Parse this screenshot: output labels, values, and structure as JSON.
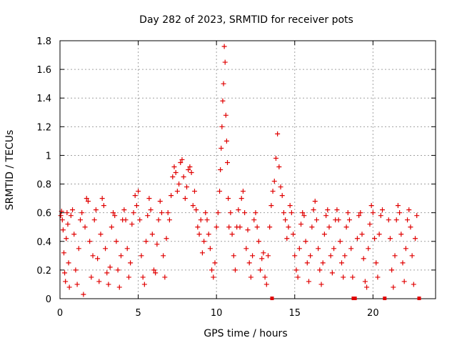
{
  "chart_data": {
    "type": "scatter",
    "title": "Day 282 of 2023, SRMTID for receiver pots",
    "xlabel": "GPS time / hours",
    "ylabel": "SRMTID / TECUs",
    "xlim": [
      0,
      24
    ],
    "ylim": [
      0,
      1.8
    ],
    "xticks": [
      0,
      5,
      10,
      15,
      20
    ],
    "xtick_labels": [
      "0",
      "5",
      "10",
      "15",
      "20"
    ],
    "yticks": [
      0,
      0.2,
      0.4,
      0.6,
      0.8,
      1,
      1.2,
      1.4,
      1.6,
      1.8
    ],
    "ytick_labels": [
      "0",
      "0.2",
      "0.4",
      "0.6",
      "0.8",
      "1",
      "1.2",
      "1.4",
      "1.6",
      "1.8"
    ],
    "grid": true,
    "marker": "+",
    "color": "#e00000",
    "series": [
      {
        "name": "SRMTID",
        "points": [
          [
            0.05,
            0.58
          ],
          [
            0.1,
            0.61
          ],
          [
            0.15,
            0.55
          ],
          [
            0.2,
            0.48
          ],
          [
            0.25,
            0.32
          ],
          [
            0.3,
            0.18
          ],
          [
            0.35,
            0.12
          ],
          [
            0.4,
            0.42
          ],
          [
            0.45,
            0.6
          ],
          [
            0.5,
            0.52
          ],
          [
            0.55,
            0.25
          ],
          [
            0.6,
            0.08
          ],
          [
            0.7,
            0.58
          ],
          [
            0.8,
            0.62
          ],
          [
            0.9,
            0.45
          ],
          [
            1.0,
            0.2
          ],
          [
            1.1,
            0.1
          ],
          [
            1.2,
            0.35
          ],
          [
            1.3,
            0.55
          ],
          [
            1.4,
            0.6
          ],
          [
            1.5,
            0.03
          ],
          [
            1.6,
            0.5
          ],
          [
            1.7,
            0.7
          ],
          [
            1.8,
            0.68
          ],
          [
            1.9,
            0.4
          ],
          [
            2.0,
            0.15
          ],
          [
            2.1,
            0.3
          ],
          [
            2.2,
            0.55
          ],
          [
            2.3,
            0.62
          ],
          [
            2.4,
            0.28
          ],
          [
            2.5,
            0.12
          ],
          [
            2.6,
            0.45
          ],
          [
            2.7,
            0.7
          ],
          [
            2.8,
            0.65
          ],
          [
            2.9,
            0.35
          ],
          [
            3.0,
            0.18
          ],
          [
            3.1,
            0.1
          ],
          [
            3.2,
            0.22
          ],
          [
            3.3,
            0.5
          ],
          [
            3.4,
            0.6
          ],
          [
            3.5,
            0.58
          ],
          [
            3.6,
            0.4
          ],
          [
            3.7,
            0.2
          ],
          [
            3.8,
            0.08
          ],
          [
            3.9,
            0.3
          ],
          [
            4.0,
            0.55
          ],
          [
            4.1,
            0.62
          ],
          [
            4.2,
            0.55
          ],
          [
            4.3,
            0.35
          ],
          [
            4.4,
            0.15
          ],
          [
            4.5,
            0.25
          ],
          [
            4.6,
            0.52
          ],
          [
            4.7,
            0.6
          ],
          [
            4.8,
            0.72
          ],
          [
            4.9,
            0.65
          ],
          [
            5.0,
            0.75
          ],
          [
            5.1,
            0.55
          ],
          [
            5.2,
            0.3
          ],
          [
            5.3,
            0.15
          ],
          [
            5.4,
            0.1
          ],
          [
            5.5,
            0.4
          ],
          [
            5.6,
            0.58
          ],
          [
            5.7,
            0.7
          ],
          [
            5.8,
            0.62
          ],
          [
            5.9,
            0.45
          ],
          [
            6.0,
            0.2
          ],
          [
            6.1,
            0.18
          ],
          [
            6.2,
            0.38
          ],
          [
            6.3,
            0.55
          ],
          [
            6.4,
            0.68
          ],
          [
            6.5,
            0.6
          ],
          [
            6.6,
            0.3
          ],
          [
            6.7,
            0.15
          ],
          [
            6.8,
            0.42
          ],
          [
            6.9,
            0.6
          ],
          [
            7.0,
            0.55
          ],
          [
            7.1,
            0.72
          ],
          [
            7.2,
            0.85
          ],
          [
            7.3,
            0.92
          ],
          [
            7.4,
            0.88
          ],
          [
            7.5,
            0.75
          ],
          [
            7.6,
            0.8
          ],
          [
            7.7,
            0.95
          ],
          [
            7.8,
            0.97
          ],
          [
            7.9,
            0.85
          ],
          [
            8.0,
            0.7
          ],
          [
            8.1,
            0.78
          ],
          [
            8.2,
            0.9
          ],
          [
            8.3,
            0.92
          ],
          [
            8.4,
            0.88
          ],
          [
            8.5,
            0.65
          ],
          [
            8.6,
            0.75
          ],
          [
            8.7,
            0.62
          ],
          [
            8.8,
            0.5
          ],
          [
            8.9,
            0.45
          ],
          [
            9.0,
            0.55
          ],
          [
            9.1,
            0.32
          ],
          [
            9.2,
            0.4
          ],
          [
            9.3,
            0.6
          ],
          [
            9.4,
            0.55
          ],
          [
            9.5,
            0.45
          ],
          [
            9.6,
            0.35
          ],
          [
            9.7,
            0.2
          ],
          [
            9.8,
            0.15
          ],
          [
            9.9,
            0.25
          ],
          [
            10.0,
            0.5
          ],
          [
            10.1,
            0.6
          ],
          [
            10.2,
            0.75
          ],
          [
            10.25,
            0.9
          ],
          [
            10.3,
            1.05
          ],
          [
            10.35,
            1.2
          ],
          [
            10.4,
            1.38
          ],
          [
            10.45,
            1.5
          ],
          [
            10.5,
            1.76
          ],
          [
            10.55,
            1.65
          ],
          [
            10.6,
            1.28
          ],
          [
            10.65,
            1.1
          ],
          [
            10.7,
            0.95
          ],
          [
            10.75,
            0.7
          ],
          [
            10.8,
            0.5
          ],
          [
            10.9,
            0.6
          ],
          [
            11.0,
            0.45
          ],
          [
            11.1,
            0.3
          ],
          [
            11.2,
            0.2
          ],
          [
            11.3,
            0.5
          ],
          [
            11.4,
            0.62
          ],
          [
            11.5,
            0.5
          ],
          [
            11.6,
            0.7
          ],
          [
            11.7,
            0.75
          ],
          [
            11.8,
            0.6
          ],
          [
            11.9,
            0.35
          ],
          [
            12.0,
            0.48
          ],
          [
            12.1,
            0.25
          ],
          [
            12.2,
            0.15
          ],
          [
            12.3,
            0.3
          ],
          [
            12.4,
            0.55
          ],
          [
            12.5,
            0.6
          ],
          [
            12.6,
            0.5
          ],
          [
            12.7,
            0.4
          ],
          [
            12.8,
            0.2
          ],
          [
            12.9,
            0.28
          ],
          [
            13.0,
            0.32
          ],
          [
            13.1,
            0.15
          ],
          [
            13.2,
            0.1
          ],
          [
            13.3,
            0.3
          ],
          [
            13.4,
            0.5
          ],
          [
            13.5,
            0.65
          ],
          [
            13.6,
            0.75
          ],
          [
            13.7,
            0.82
          ],
          [
            13.8,
            0.98
          ],
          [
            13.9,
            1.15
          ],
          [
            14.0,
            0.92
          ],
          [
            14.1,
            0.78
          ],
          [
            14.2,
            0.72
          ],
          [
            14.3,
            0.6
          ],
          [
            14.4,
            0.55
          ],
          [
            14.5,
            0.42
          ],
          [
            14.6,
            0.5
          ],
          [
            14.7,
            0.65
          ],
          [
            14.8,
            0.6
          ],
          [
            14.9,
            0.45
          ],
          [
            15.0,
            0.3
          ],
          [
            15.1,
            0.2
          ],
          [
            15.2,
            0.15
          ],
          [
            15.3,
            0.35
          ],
          [
            15.4,
            0.52
          ],
          [
            15.5,
            0.6
          ],
          [
            15.6,
            0.58
          ],
          [
            15.7,
            0.4
          ],
          [
            15.8,
            0.25
          ],
          [
            15.9,
            0.12
          ],
          [
            16.0,
            0.3
          ],
          [
            16.1,
            0.5
          ],
          [
            16.2,
            0.62
          ],
          [
            16.3,
            0.68
          ],
          [
            16.4,
            0.55
          ],
          [
            16.5,
            0.35
          ],
          [
            16.6,
            0.2
          ],
          [
            16.7,
            0.1
          ],
          [
            16.8,
            0.25
          ],
          [
            16.9,
            0.45
          ],
          [
            17.0,
            0.58
          ],
          [
            17.1,
            0.62
          ],
          [
            17.2,
            0.5
          ],
          [
            17.3,
            0.3
          ],
          [
            17.4,
            0.18
          ],
          [
            17.5,
            0.35
          ],
          [
            17.6,
            0.55
          ],
          [
            17.7,
            0.62
          ],
          [
            17.8,
            0.55
          ],
          [
            17.9,
            0.4
          ],
          [
            18.0,
            0.25
          ],
          [
            18.1,
            0.15
          ],
          [
            18.2,
            0.3
          ],
          [
            18.3,
            0.5
          ],
          [
            18.4,
            0.6
          ],
          [
            18.5,
            0.55
          ],
          [
            18.6,
            0.35
          ],
          [
            18.7,
            0.15
          ],
          [
            19.0,
            0.42
          ],
          [
            19.1,
            0.58
          ],
          [
            19.2,
            0.6
          ],
          [
            19.3,
            0.45
          ],
          [
            19.4,
            0.28
          ],
          [
            19.5,
            0.12
          ],
          [
            19.6,
            0.08
          ],
          [
            19.7,
            0.35
          ],
          [
            19.8,
            0.52
          ],
          [
            19.9,
            0.65
          ],
          [
            20.0,
            0.6
          ],
          [
            20.1,
            0.42
          ],
          [
            20.2,
            0.25
          ],
          [
            20.3,
            0.15
          ],
          [
            20.4,
            0.45
          ],
          [
            20.5,
            0.58
          ],
          [
            20.6,
            0.62
          ],
          [
            21.0,
            0.55
          ],
          [
            21.1,
            0.42
          ],
          [
            21.2,
            0.2
          ],
          [
            21.3,
            0.08
          ],
          [
            21.4,
            0.3
          ],
          [
            21.5,
            0.55
          ],
          [
            21.6,
            0.65
          ],
          [
            21.7,
            0.6
          ],
          [
            21.8,
            0.45
          ],
          [
            21.9,
            0.25
          ],
          [
            22.0,
            0.12
          ],
          [
            22.1,
            0.35
          ],
          [
            22.2,
            0.55
          ],
          [
            22.3,
            0.62
          ],
          [
            22.4,
            0.5
          ],
          [
            22.5,
            0.3
          ],
          [
            22.6,
            0.1
          ],
          [
            22.7,
            0.42
          ],
          [
            22.8,
            0.58
          ]
        ]
      }
    ],
    "gap_markers_x": [
      13.55,
      18.75,
      18.85,
      20.75,
      22.95
    ]
  }
}
